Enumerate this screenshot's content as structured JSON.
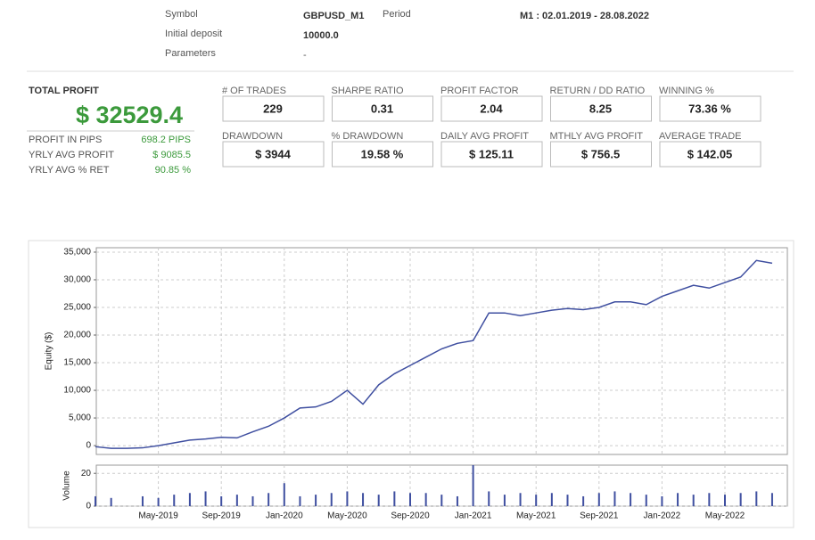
{
  "header": {
    "symbol_label": "Symbol",
    "symbol": "GBPUSD_M1",
    "period_label": "Period",
    "period": "M1 : 02.01.2019 - 28.08.2022",
    "deposit_label": "Initial deposit",
    "deposit": "10000.0",
    "params_label": "Parameters",
    "params": "-"
  },
  "summary": {
    "title": "TOTAL PROFIT",
    "profit": "$ 32529.4",
    "rows": [
      [
        "PROFIT IN PIPS",
        "698.2 PIPS"
      ],
      [
        "YRLY AVG PROFIT",
        "$ 9085.5"
      ],
      [
        "YRLY AVG % RET",
        "90.85 %"
      ]
    ]
  },
  "stats": [
    {
      "label": "# OF TRADES",
      "value": "229"
    },
    {
      "label": "SHARPE RATIO",
      "value": "0.31"
    },
    {
      "label": "PROFIT FACTOR",
      "value": "2.04"
    },
    {
      "label": "RETURN / DD RATIO",
      "value": "8.25"
    },
    {
      "label": "WINNING %",
      "value": "73.36 %"
    },
    {
      "label": "DRAWDOWN",
      "value": "$ 3944"
    },
    {
      "label": "% DRAWDOWN",
      "value": "19.58 %"
    },
    {
      "label": "DAILY AVG PROFIT",
      "value": "$ 125.11"
    },
    {
      "label": "MTHLY AVG PROFIT",
      "value": "$ 756.5"
    },
    {
      "label": "AVERAGE TRADE",
      "value": "$ 142.05"
    }
  ],
  "chart_data": [
    {
      "type": "line",
      "ylabel": "Equity ($)",
      "categories": [
        null,
        null,
        null,
        null,
        "May-2019",
        null,
        null,
        null,
        "Sep-2019",
        null,
        null,
        null,
        "Jan-2020",
        null,
        null,
        null,
        "May-2020",
        null,
        null,
        null,
        "Sep-2020",
        null,
        null,
        null,
        "Jan-2021",
        null,
        null,
        null,
        "May-2021",
        null,
        null,
        null,
        "Sep-2021",
        null,
        null,
        null,
        "Jan-2022",
        null,
        null,
        null,
        "May-2022",
        null,
        null,
        null
      ],
      "color": "#3f4fa0",
      "values": [
        -200,
        -500,
        -500,
        -400,
        0,
        500,
        1000,
        1200,
        1500,
        1400,
        2500,
        3500,
        5000,
        6800,
        7000,
        8000,
        10000,
        7500,
        11000,
        13000,
        14500,
        16000,
        17500,
        18500,
        19000,
        24000,
        24000,
        23500,
        24000,
        24500,
        24800,
        24600,
        25000,
        26000,
        26000,
        25500,
        27000,
        28000,
        29000,
        28500,
        29500,
        30500,
        33500,
        33000
      ],
      "ylim": [
        -1600,
        35800
      ],
      "yticks": [
        {
          "value": 35000,
          "label": "35,000"
        },
        {
          "value": 30000,
          "label": "30,000"
        },
        {
          "value": 25000,
          "label": "25,000"
        },
        {
          "value": 20000,
          "label": "20,000"
        },
        {
          "value": 15000,
          "label": "15,000"
        },
        {
          "value": 10000,
          "label": "10,000"
        },
        {
          "value": 5000,
          "label": "5,000"
        },
        0
      ],
      "grid": true
    },
    {
      "type": "bar",
      "ylabel": "Volume",
      "color": "#3f4fa0",
      "values": [
        6,
        5,
        0,
        6,
        5,
        7,
        8,
        9,
        6,
        7,
        6,
        8,
        14,
        6,
        7,
        8,
        9,
        8,
        7,
        9,
        8,
        8,
        7,
        6,
        25,
        9,
        7,
        8,
        7,
        8,
        7,
        6,
        8,
        9,
        8,
        7,
        6,
        8,
        7,
        8,
        7,
        8,
        9,
        8
      ],
      "ylim": [
        0,
        25
      ],
      "yticks": [
        20,
        0
      ],
      "grid": true
    }
  ]
}
